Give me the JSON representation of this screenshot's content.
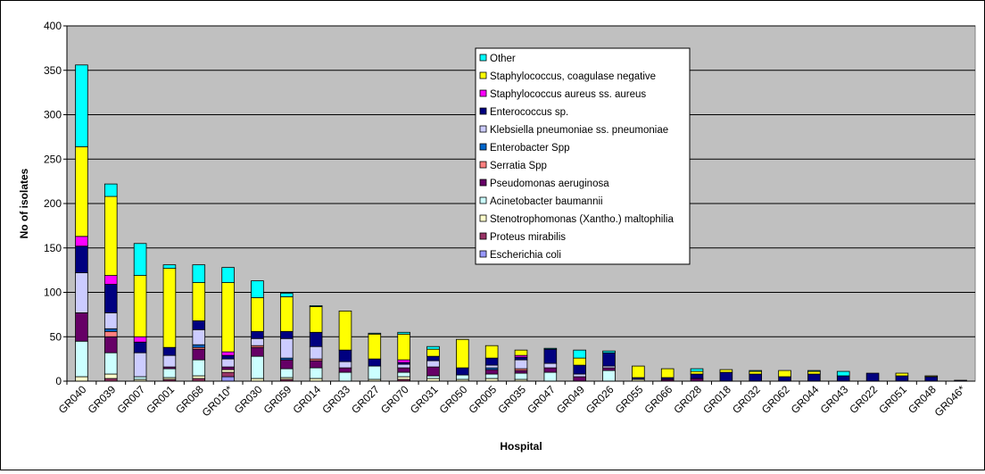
{
  "chart_data": {
    "type": "bar",
    "stacked": true,
    "title": "",
    "xlabel": "Hospital",
    "ylabel": "No of isolates",
    "ylim": [
      0,
      400
    ],
    "yticks": [
      "0",
      "50",
      "100",
      "150",
      "200",
      "250",
      "300",
      "350",
      "400"
    ],
    "plot_background": "#c0c0c0",
    "grid": true,
    "legend_placement": "top-center",
    "categories": [
      "GR040",
      "GR039",
      "GR007",
      "GR001",
      "GR068",
      "GR010*",
      "GR030",
      "GR059",
      "GR014",
      "GR033",
      "GR027",
      "GR070",
      "GR031",
      "GR050",
      "GR005",
      "GR035",
      "GR047",
      "GR049",
      "GR026",
      "GR055",
      "GR066",
      "GR028",
      "GR018",
      "GR032",
      "GR062",
      "GR044",
      "GR043",
      "GR022",
      "GR051",
      "GR048",
      "GR046*"
    ],
    "series": [
      {
        "name": "Escherichia coli",
        "color": "#9999ff",
        "values": [
          0,
          0,
          0,
          0,
          0,
          5,
          0,
          0,
          0,
          0,
          0,
          0,
          0,
          0,
          0,
          0,
          0,
          0,
          0,
          0,
          0,
          0,
          0,
          0,
          0,
          0,
          0,
          0,
          0,
          0,
          0
        ]
      },
      {
        "name": "Proteus mirabilis",
        "color": "#993366",
        "values": [
          0,
          3,
          0,
          2,
          3,
          5,
          0,
          2,
          0,
          0,
          0,
          2,
          0,
          0,
          0,
          0,
          0,
          0,
          0,
          0,
          0,
          0,
          0,
          0,
          0,
          0,
          0,
          0,
          0,
          0,
          0
        ]
      },
      {
        "name": "Stenotrophomonas (Xantho.) maltophilia",
        "color": "#ffffcc",
        "values": [
          5,
          5,
          2,
          2,
          3,
          3,
          3,
          2,
          3,
          0,
          2,
          3,
          3,
          2,
          3,
          2,
          0,
          0,
          0,
          2,
          0,
          0,
          0,
          0,
          0,
          0,
          0,
          0,
          0,
          0,
          0
        ]
      },
      {
        "name": "Acinetobacter baumannii",
        "color": "#ccffff",
        "values": [
          40,
          24,
          3,
          10,
          18,
          0,
          25,
          10,
          12,
          10,
          15,
          5,
          3,
          5,
          5,
          7,
          10,
          0,
          12,
          0,
          0,
          0,
          0,
          0,
          0,
          0,
          0,
          0,
          0,
          0,
          0
        ]
      },
      {
        "name": "Pseudomonas aeruginosa",
        "color": "#660066",
        "values": [
          32,
          18,
          0,
          2,
          12,
          3,
          10,
          10,
          8,
          5,
          0,
          5,
          10,
          0,
          5,
          3,
          5,
          5,
          3,
          0,
          2,
          3,
          0,
          0,
          0,
          0,
          0,
          0,
          0,
          0,
          0
        ]
      },
      {
        "name": "Serratia Spp",
        "color": "#ff8080",
        "values": [
          0,
          6,
          0,
          0,
          2,
          0,
          2,
          0,
          2,
          0,
          0,
          0,
          0,
          0,
          0,
          2,
          0,
          0,
          0,
          0,
          0,
          0,
          0,
          0,
          0,
          0,
          0,
          0,
          0,
          0,
          0
        ]
      },
      {
        "name": "Enterobacter Spp",
        "color": "#0066cc",
        "values": [
          0,
          3,
          0,
          0,
          3,
          0,
          0,
          2,
          0,
          0,
          0,
          0,
          0,
          0,
          2,
          0,
          0,
          0,
          0,
          0,
          0,
          0,
          0,
          0,
          0,
          0,
          0,
          0,
          0,
          0,
          0
        ]
      },
      {
        "name": "Klebsiella pneumoniae ss. pneumoniae",
        "color": "#ccccff",
        "values": [
          45,
          18,
          27,
          13,
          17,
          9,
          8,
          22,
          14,
          7,
          0,
          4,
          7,
          0,
          3,
          10,
          5,
          3,
          2,
          0,
          0,
          0,
          0,
          0,
          0,
          0,
          0,
          0,
          0,
          0,
          0
        ]
      },
      {
        "name": "Enterococcus sp.",
        "color": "#000080",
        "values": [
          30,
          32,
          12,
          9,
          10,
          4,
          8,
          8,
          16,
          13,
          8,
          2,
          5,
          8,
          8,
          3,
          16,
          10,
          15,
          2,
          2,
          5,
          10,
          8,
          5,
          8,
          6,
          9,
          6,
          5,
          1
        ]
      },
      {
        "name": "Staphylococcus aureus ss. aureus",
        "color": "#ff00ff",
        "values": [
          11,
          10,
          6,
          0,
          0,
          4,
          0,
          0,
          0,
          0,
          0,
          3,
          0,
          0,
          0,
          2,
          0,
          0,
          0,
          0,
          0,
          0,
          0,
          0,
          0,
          0,
          0,
          0,
          0,
          0,
          0
        ]
      },
      {
        "name": "Staphylococcus, coagulase negative",
        "color": "#ffff00",
        "values": [
          101,
          89,
          69,
          89,
          43,
          78,
          38,
          39,
          29,
          44,
          28,
          29,
          8,
          32,
          14,
          6,
          0,
          8,
          0,
          13,
          10,
          3,
          3,
          3,
          7,
          3,
          0,
          0,
          3,
          1,
          0
        ]
      },
      {
        "name": "Other",
        "color": "#00ffff",
        "values": [
          92,
          14,
          36,
          4,
          20,
          17,
          19,
          4,
          1,
          0,
          1,
          2,
          3,
          0,
          0,
          0,
          1,
          9,
          2,
          0,
          0,
          3,
          0,
          1,
          0,
          1,
          5,
          0,
          0,
          0,
          0
        ]
      }
    ]
  }
}
